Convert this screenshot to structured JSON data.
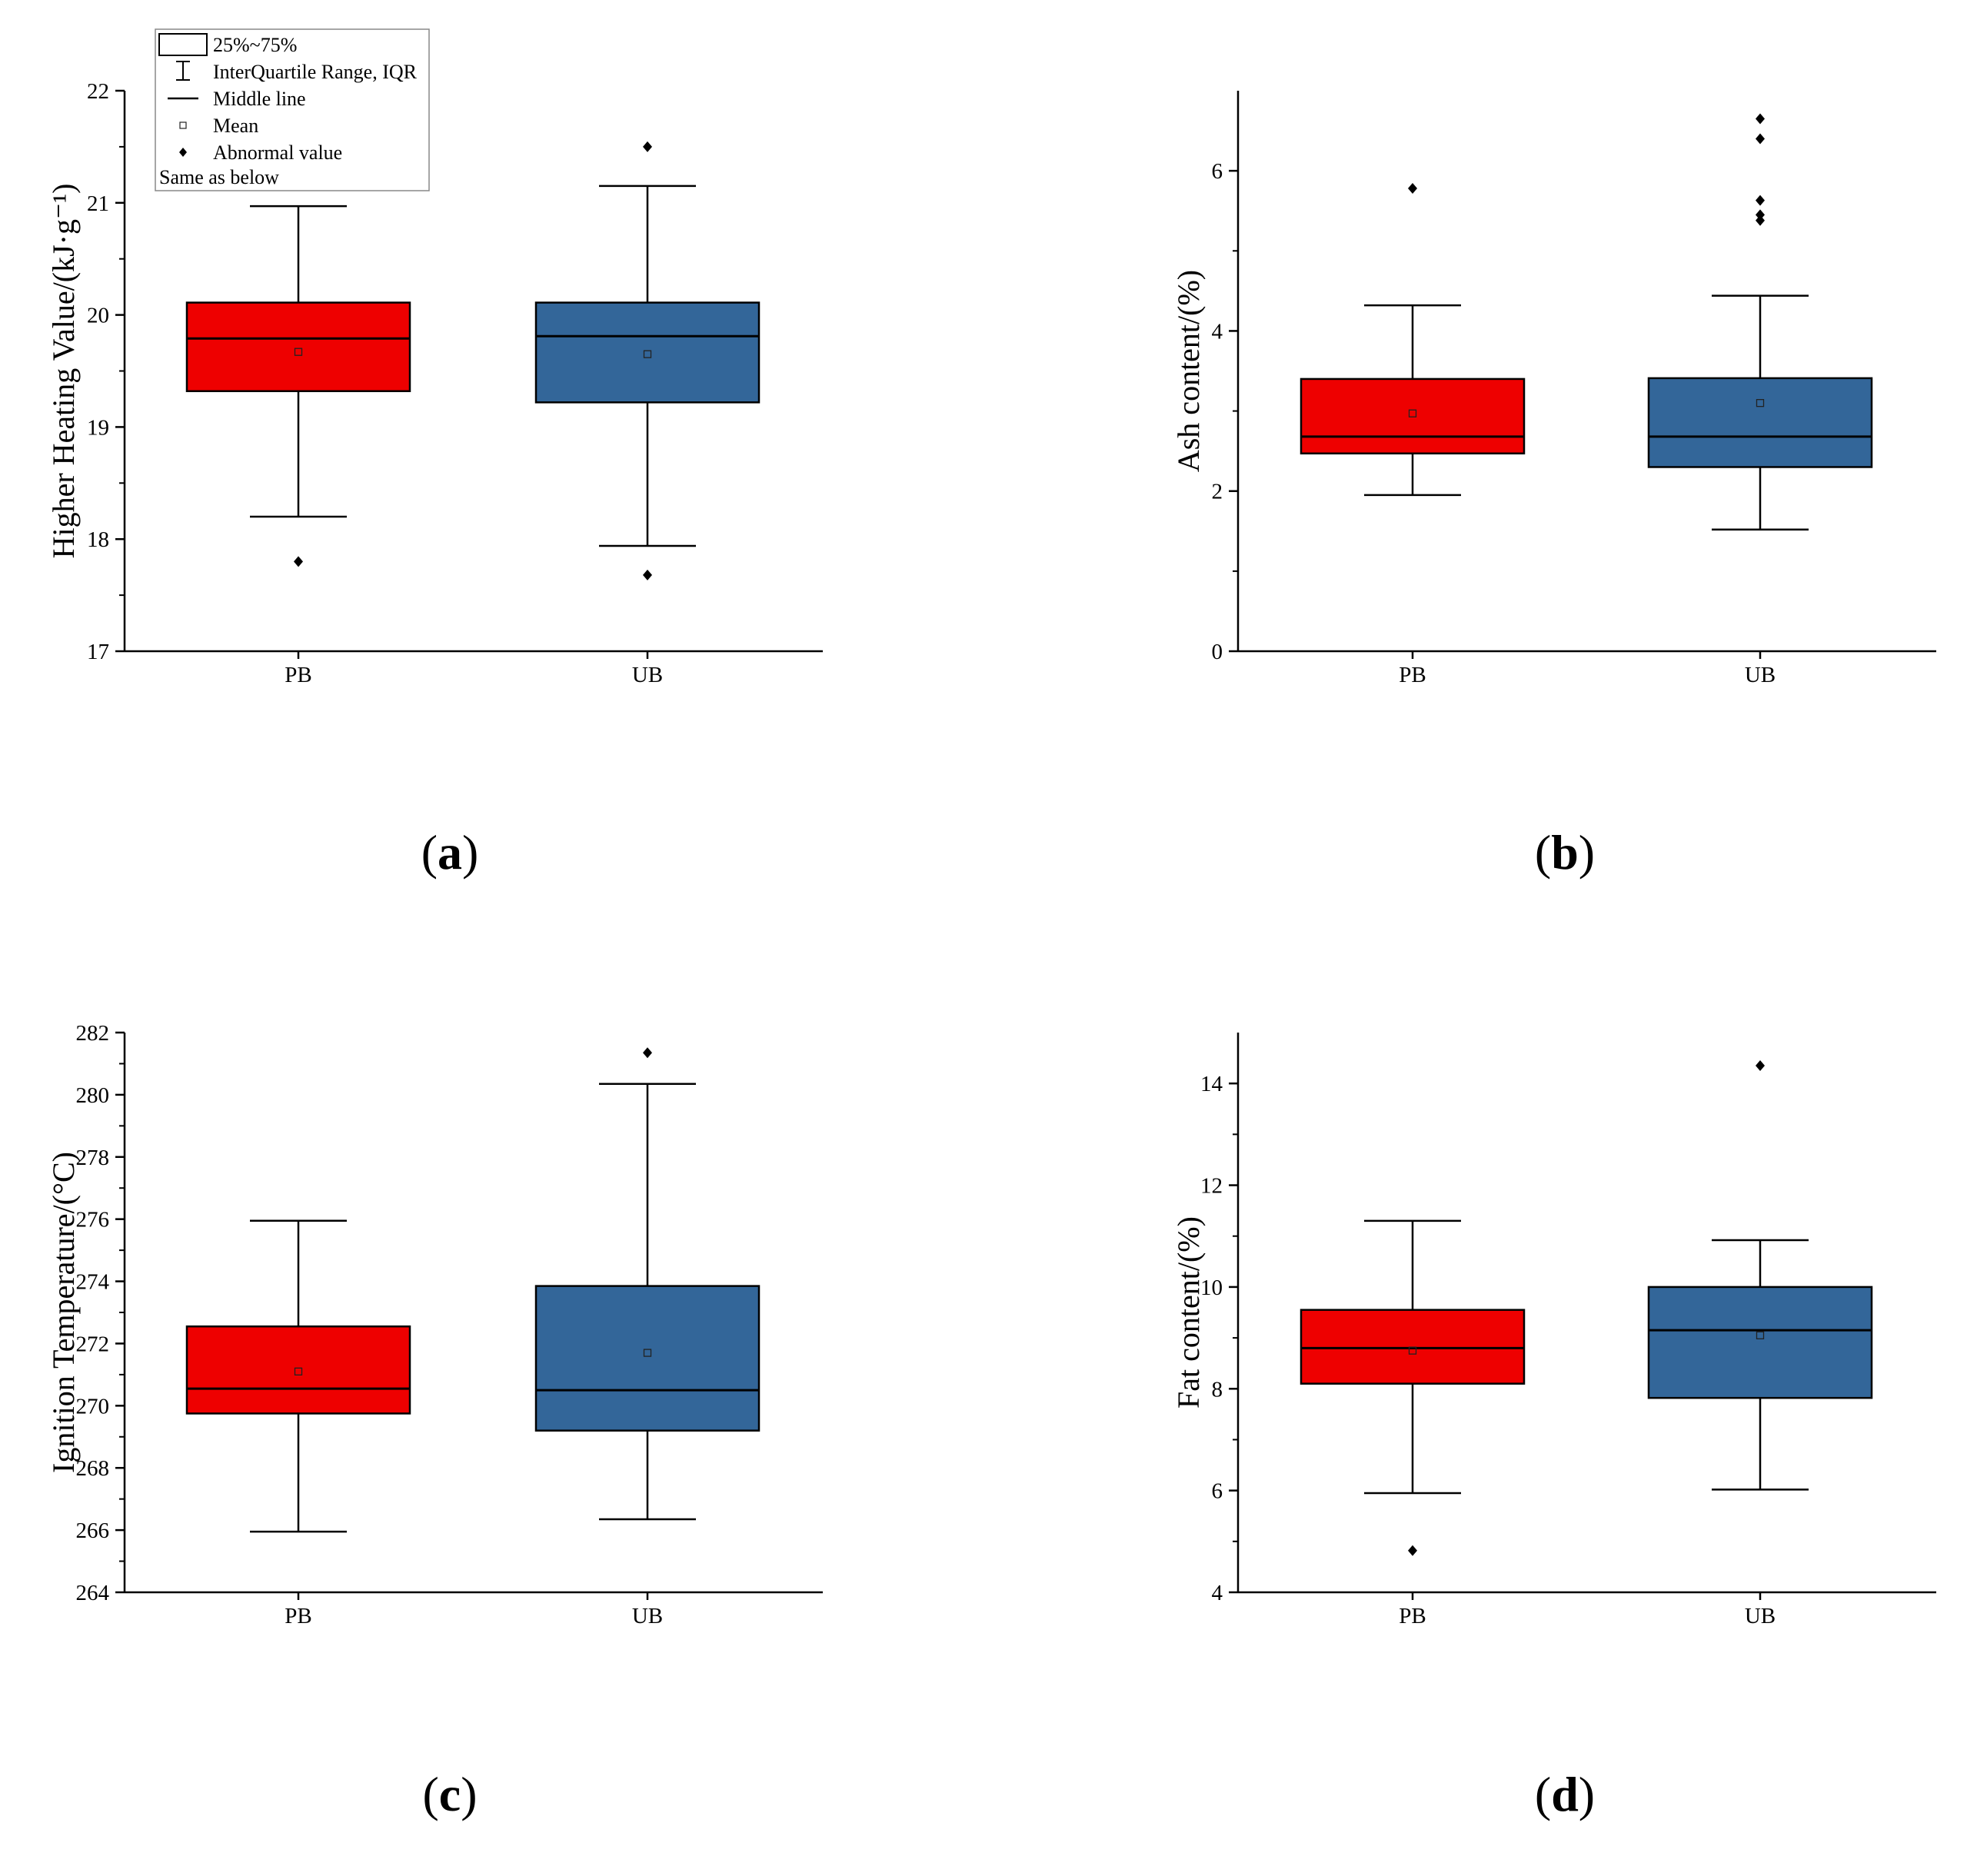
{
  "colors": {
    "PB": "#ee0000",
    "UB": "#336699",
    "axis": "#000000"
  },
  "legend": {
    "items": [
      {
        "icon": "box-icon",
        "label": "25%~75%"
      },
      {
        "icon": "whisker-icon",
        "label": "InterQuartile Range, IQR"
      },
      {
        "icon": "line-icon",
        "label": "Middle line"
      },
      {
        "icon": "mean-square-icon",
        "label": "Mean"
      },
      {
        "icon": "diamond-icon",
        "label": "Abnormal value"
      }
    ],
    "note": "Same as below"
  },
  "chart_data": [
    {
      "id": "a",
      "type": "box",
      "panel_label": {
        "open": "(",
        "letter": "a",
        "close": ")"
      },
      "ylabel": "Higher Heating Value/(kJ·g⁻¹)",
      "xlabel": "",
      "ylim": [
        17,
        22
      ],
      "yticks": [
        17,
        18,
        19,
        20,
        21,
        22
      ],
      "yticklabels": [
        "17",
        "18",
        "19",
        "20",
        "21",
        "22"
      ],
      "categories": [
        "PB",
        "UB"
      ],
      "series": [
        {
          "name": "PB",
          "q1": 19.32,
          "median": 19.79,
          "q3": 20.11,
          "whisker_low": 18.2,
          "whisker_high": 20.97,
          "mean": 19.67,
          "outliers": [
            17.8
          ]
        },
        {
          "name": "UB",
          "q1": 19.22,
          "median": 19.81,
          "q3": 20.11,
          "whisker_low": 17.94,
          "whisker_high": 21.15,
          "mean": 19.65,
          "outliers": [
            21.5,
            17.68
          ]
        }
      ]
    },
    {
      "id": "b",
      "type": "box",
      "panel_label": {
        "open": "(",
        "letter": "b",
        "close": ")"
      },
      "ylabel": "Ash content/(%)",
      "xlabel": "",
      "ylim": [
        0,
        7
      ],
      "yticks": [
        0,
        2,
        4,
        6
      ],
      "yticklabels": [
        "0",
        "2",
        "4",
        "6"
      ],
      "categories": [
        "PB",
        "UB"
      ],
      "series": [
        {
          "name": "PB",
          "q1": 2.47,
          "median": 2.68,
          "q3": 3.4,
          "whisker_low": 1.95,
          "whisker_high": 4.32,
          "mean": 2.97,
          "outliers": [
            5.78
          ]
        },
        {
          "name": "UB",
          "q1": 2.3,
          "median": 2.68,
          "q3": 3.41,
          "whisker_low": 1.52,
          "whisker_high": 4.44,
          "mean": 3.1,
          "outliers": [
            6.65,
            6.4,
            5.63,
            5.45,
            5.38
          ]
        }
      ]
    },
    {
      "id": "c",
      "type": "box",
      "panel_label": {
        "open": "(",
        "letter": "c",
        "close": ")"
      },
      "ylabel": "Ignition Temperature/(°C)",
      "xlabel": "",
      "ylim": [
        264,
        282
      ],
      "yticks": [
        264,
        266,
        268,
        270,
        272,
        274,
        276,
        278,
        280,
        282
      ],
      "yticklabels": [
        "264",
        "266",
        "268",
        "270",
        "272",
        "274",
        "276",
        "278",
        "280",
        "282"
      ],
      "categories": [
        "PB",
        "UB"
      ],
      "series": [
        {
          "name": "PB",
          "q1": 269.75,
          "median": 270.55,
          "q3": 272.55,
          "whisker_low": 265.95,
          "whisker_high": 275.95,
          "mean": 271.1,
          "outliers": []
        },
        {
          "name": "UB",
          "q1": 269.2,
          "median": 270.5,
          "q3": 273.85,
          "whisker_low": 266.35,
          "whisker_high": 280.35,
          "mean": 271.7,
          "outliers": [
            281.35
          ]
        }
      ]
    },
    {
      "id": "d",
      "type": "box",
      "panel_label": {
        "open": "(",
        "letter": "d",
        "close": ")"
      },
      "ylabel": "Fat content/(%)",
      "xlabel": "",
      "ylim": [
        4,
        15
      ],
      "yticks": [
        4,
        6,
        8,
        10,
        12,
        14
      ],
      "yticklabels": [
        "4",
        "6",
        "8",
        "10",
        "12",
        "14"
      ],
      "categories": [
        "PB",
        "UB"
      ],
      "series": [
        {
          "name": "PB",
          "q1": 8.1,
          "median": 8.8,
          "q3": 9.55,
          "whisker_low": 5.95,
          "whisker_high": 11.3,
          "mean": 8.75,
          "outliers": [
            4.82
          ]
        },
        {
          "name": "UB",
          "q1": 7.82,
          "median": 9.15,
          "q3": 10.0,
          "whisker_low": 6.02,
          "whisker_high": 10.92,
          "mean": 9.05,
          "outliers": [
            14.35
          ]
        }
      ]
    }
  ]
}
